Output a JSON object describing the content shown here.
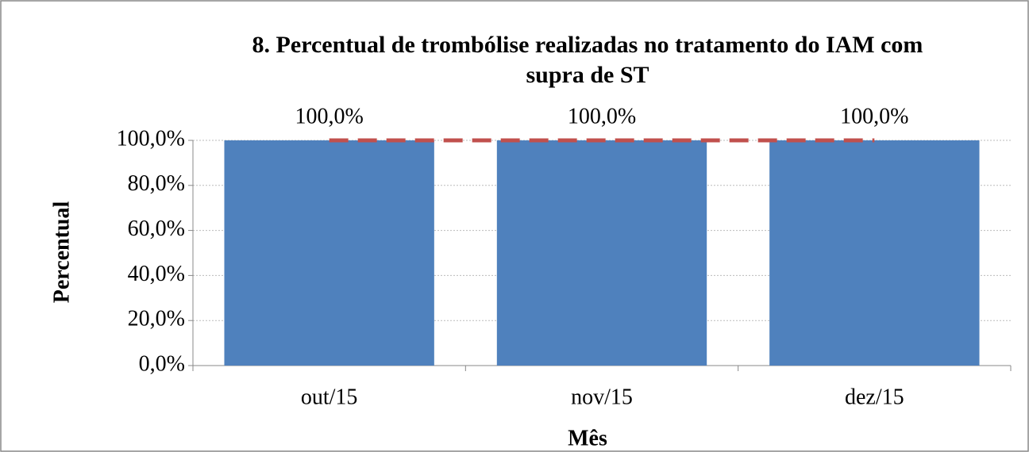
{
  "chart_data": {
    "type": "bar",
    "title": "8. Percentual de trombólise realizadas no tratamento do IAM com\nsupra de ST",
    "x_label": "Mês",
    "y_label": "Percentual",
    "categories": [
      "out/15",
      "nov/15",
      "dez/15"
    ],
    "values": [
      100,
      100,
      100
    ],
    "value_labels": [
      "100,0%",
      "100,0%",
      "100,0%"
    ],
    "color": "#4f81bd",
    "target": {
      "values": [
        100,
        100,
        100
      ],
      "color": "#c0504d"
    },
    "ylim": [
      0,
      100
    ],
    "yticks": [
      {
        "value": 0,
        "label": "0,0%"
      },
      {
        "value": 20,
        "label": "20,0%"
      },
      {
        "value": 40,
        "label": "40,0%"
      },
      {
        "value": 60,
        "label": "60,0%"
      },
      {
        "value": 80,
        "label": "80,0%"
      },
      {
        "value": 100,
        "label": "100,0%"
      }
    ],
    "grid": true
  }
}
